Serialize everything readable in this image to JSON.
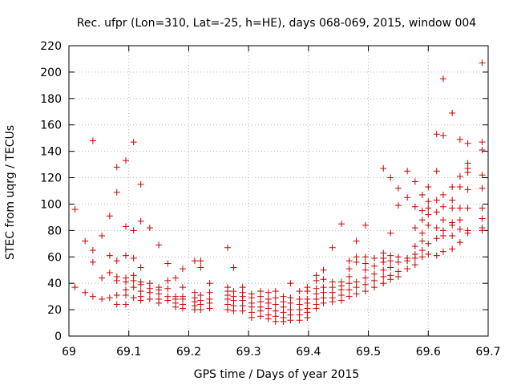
{
  "chart_data": {
    "type": "scatter",
    "title": "Rec. ufpr (Lon=310, Lat=-25, h=HE), days 068-069, 2015, window 004",
    "xlabel": "GPS time / Days of year 2015",
    "ylabel": "STEC from uqrg / TECUs",
    "xlim": [
      69,
      69.7
    ],
    "ylim": [
      0,
      220
    ],
    "xticks": [
      69,
      69.1,
      69.2,
      69.3,
      69.4,
      69.5,
      69.6,
      69.7
    ],
    "xtick_labels": [
      "69",
      "69.1",
      "69.2",
      "69.3",
      "69.4",
      "69.5",
      "69.6",
      "69.7"
    ],
    "yticks": [
      0,
      20,
      40,
      60,
      80,
      100,
      120,
      140,
      160,
      180,
      200,
      220
    ],
    "ytick_labels": [
      "0",
      "20",
      "40",
      "60",
      "80",
      "100",
      "120",
      "140",
      "160",
      "180",
      "200",
      "220"
    ],
    "marker": "+",
    "marker_color": "#cc0000",
    "series": [
      {
        "name": "STEC",
        "points": [
          [
            69.01,
            96
          ],
          [
            69.01,
            37
          ],
          [
            69.027,
            72
          ],
          [
            69.027,
            33
          ],
          [
            69.04,
            148
          ],
          [
            69.04,
            65
          ],
          [
            69.04,
            56
          ],
          [
            69.04,
            30
          ],
          [
            69.055,
            76
          ],
          [
            69.055,
            44
          ],
          [
            69.055,
            28
          ],
          [
            69.068,
            91
          ],
          [
            69.068,
            61
          ],
          [
            69.068,
            48
          ],
          [
            69.068,
            29
          ],
          [
            69.08,
            128
          ],
          [
            69.08,
            109
          ],
          [
            69.08,
            57
          ],
          [
            69.08,
            45
          ],
          [
            69.08,
            42
          ],
          [
            69.08,
            31
          ],
          [
            69.08,
            24
          ],
          [
            69.095,
            133
          ],
          [
            69.095,
            83
          ],
          [
            69.095,
            61
          ],
          [
            69.095,
            44
          ],
          [
            69.095,
            41
          ],
          [
            69.095,
            35
          ],
          [
            69.095,
            31
          ],
          [
            69.095,
            24
          ],
          [
            69.108,
            147
          ],
          [
            69.108,
            80
          ],
          [
            69.108,
            59
          ],
          [
            69.108,
            46
          ],
          [
            69.108,
            42
          ],
          [
            69.108,
            37
          ],
          [
            69.108,
            29
          ],
          [
            69.12,
            115
          ],
          [
            69.12,
            87
          ],
          [
            69.12,
            52
          ],
          [
            69.12,
            41
          ],
          [
            69.12,
            39
          ],
          [
            69.12,
            34
          ],
          [
            69.12,
            30
          ],
          [
            69.12,
            27
          ],
          [
            69.135,
            82
          ],
          [
            69.135,
            40
          ],
          [
            69.135,
            36
          ],
          [
            69.135,
            33
          ],
          [
            69.135,
            28
          ],
          [
            69.15,
            69
          ],
          [
            69.15,
            37
          ],
          [
            69.15,
            35
          ],
          [
            69.15,
            32
          ],
          [
            69.15,
            28
          ],
          [
            69.15,
            25
          ],
          [
            69.165,
            55
          ],
          [
            69.165,
            42
          ],
          [
            69.165,
            36
          ],
          [
            69.165,
            30
          ],
          [
            69.165,
            27
          ],
          [
            69.178,
            44
          ],
          [
            69.178,
            30
          ],
          [
            69.178,
            28
          ],
          [
            69.178,
            25
          ],
          [
            69.178,
            22
          ],
          [
            69.19,
            51
          ],
          [
            69.19,
            37
          ],
          [
            69.19,
            30
          ],
          [
            69.19,
            28
          ],
          [
            69.19,
            24
          ],
          [
            69.19,
            21
          ],
          [
            69.21,
            57
          ],
          [
            69.21,
            33
          ],
          [
            69.21,
            29
          ],
          [
            69.21,
            26
          ],
          [
            69.21,
            23
          ],
          [
            69.21,
            20
          ],
          [
            69.22,
            57
          ],
          [
            69.22,
            52
          ],
          [
            69.22,
            31
          ],
          [
            69.22,
            27
          ],
          [
            69.22,
            24
          ],
          [
            69.22,
            20
          ],
          [
            69.235,
            40
          ],
          [
            69.235,
            33
          ],
          [
            69.235,
            28
          ],
          [
            69.235,
            25
          ],
          [
            69.235,
            21
          ],
          [
            69.265,
            67
          ],
          [
            69.265,
            37
          ],
          [
            69.265,
            34
          ],
          [
            69.265,
            31
          ],
          [
            69.265,
            28
          ],
          [
            69.265,
            24
          ],
          [
            69.265,
            20
          ],
          [
            69.275,
            52
          ],
          [
            69.275,
            34
          ],
          [
            69.275,
            30
          ],
          [
            69.275,
            27
          ],
          [
            69.275,
            23
          ],
          [
            69.275,
            19
          ],
          [
            69.29,
            37
          ],
          [
            69.29,
            33
          ],
          [
            69.29,
            30
          ],
          [
            69.29,
            27
          ],
          [
            69.29,
            23
          ],
          [
            69.29,
            19
          ],
          [
            69.305,
            32
          ],
          [
            69.305,
            29
          ],
          [
            69.305,
            25
          ],
          [
            69.305,
            22
          ],
          [
            69.305,
            18
          ],
          [
            69.305,
            14
          ],
          [
            69.32,
            34
          ],
          [
            69.32,
            30
          ],
          [
            69.32,
            26
          ],
          [
            69.32,
            22
          ],
          [
            69.32,
            19
          ],
          [
            69.32,
            15
          ],
          [
            69.333,
            33
          ],
          [
            69.333,
            28
          ],
          [
            69.333,
            25
          ],
          [
            69.333,
            21
          ],
          [
            69.333,
            16
          ],
          [
            69.333,
            13
          ],
          [
            69.345,
            34
          ],
          [
            69.345,
            29
          ],
          [
            69.345,
            24
          ],
          [
            69.345,
            19
          ],
          [
            69.345,
            15
          ],
          [
            69.345,
            11
          ],
          [
            69.358,
            30
          ],
          [
            69.358,
            26
          ],
          [
            69.358,
            22
          ],
          [
            69.358,
            18
          ],
          [
            69.358,
            14
          ],
          [
            69.358,
            11
          ],
          [
            69.37,
            40
          ],
          [
            69.37,
            29
          ],
          [
            69.37,
            25
          ],
          [
            69.37,
            20
          ],
          [
            69.37,
            16
          ],
          [
            69.37,
            12
          ],
          [
            69.385,
            34
          ],
          [
            69.385,
            28
          ],
          [
            69.385,
            24
          ],
          [
            69.385,
            20
          ],
          [
            69.385,
            16
          ],
          [
            69.385,
            12
          ],
          [
            69.398,
            37
          ],
          [
            69.398,
            34
          ],
          [
            69.398,
            28
          ],
          [
            69.398,
            25
          ],
          [
            69.398,
            21
          ],
          [
            69.398,
            18
          ],
          [
            69.398,
            14
          ],
          [
            69.413,
            46
          ],
          [
            69.413,
            42
          ],
          [
            69.413,
            36
          ],
          [
            69.413,
            32
          ],
          [
            69.413,
            28
          ],
          [
            69.413,
            24
          ],
          [
            69.413,
            21
          ],
          [
            69.425,
            50
          ],
          [
            69.425,
            43
          ],
          [
            69.425,
            37
          ],
          [
            69.425,
            33
          ],
          [
            69.425,
            29
          ],
          [
            69.425,
            25
          ],
          [
            69.44,
            67
          ],
          [
            69.44,
            41
          ],
          [
            69.44,
            37
          ],
          [
            69.44,
            33
          ],
          [
            69.44,
            29
          ],
          [
            69.44,
            26
          ],
          [
            69.455,
            85
          ],
          [
            69.455,
            41
          ],
          [
            69.455,
            38
          ],
          [
            69.455,
            35
          ],
          [
            69.455,
            31
          ],
          [
            69.455,
            27
          ],
          [
            69.468,
            57
          ],
          [
            69.468,
            51
          ],
          [
            69.468,
            45
          ],
          [
            69.468,
            40
          ],
          [
            69.468,
            35
          ],
          [
            69.468,
            30
          ],
          [
            69.48,
            72
          ],
          [
            69.48,
            60
          ],
          [
            69.48,
            56
          ],
          [
            69.48,
            41
          ],
          [
            69.48,
            37
          ],
          [
            69.48,
            32
          ],
          [
            69.495,
            84
          ],
          [
            69.495,
            60
          ],
          [
            69.495,
            55
          ],
          [
            69.495,
            50
          ],
          [
            69.495,
            44
          ],
          [
            69.495,
            39
          ],
          [
            69.495,
            34
          ],
          [
            69.51,
            59
          ],
          [
            69.51,
            53
          ],
          [
            69.51,
            47
          ],
          [
            69.51,
            42
          ],
          [
            69.51,
            37
          ],
          [
            69.525,
            127
          ],
          [
            69.525,
            63
          ],
          [
            69.525,
            59
          ],
          [
            69.525,
            56
          ],
          [
            69.525,
            50
          ],
          [
            69.525,
            45
          ],
          [
            69.525,
            40
          ],
          [
            69.537,
            120
          ],
          [
            69.537,
            78
          ],
          [
            69.537,
            61
          ],
          [
            69.537,
            57
          ],
          [
            69.537,
            52
          ],
          [
            69.537,
            46
          ],
          [
            69.537,
            43
          ],
          [
            69.55,
            112
          ],
          [
            69.55,
            99
          ],
          [
            69.55,
            60
          ],
          [
            69.55,
            56
          ],
          [
            69.55,
            49
          ],
          [
            69.55,
            45
          ],
          [
            69.565,
            125
          ],
          [
            69.565,
            105
          ],
          [
            69.565,
            59
          ],
          [
            69.565,
            57
          ],
          [
            69.565,
            51
          ],
          [
            69.578,
            117
          ],
          [
            69.578,
            98
          ],
          [
            69.578,
            82
          ],
          [
            69.578,
            68
          ],
          [
            69.578,
            62
          ],
          [
            69.578,
            59
          ],
          [
            69.578,
            54
          ],
          [
            69.59,
            107
          ],
          [
            69.59,
            95
          ],
          [
            69.59,
            88
          ],
          [
            69.59,
            78
          ],
          [
            69.59,
            72
          ],
          [
            69.59,
            65
          ],
          [
            69.59,
            60
          ],
          [
            69.6,
            113
          ],
          [
            69.6,
            102
          ],
          [
            69.6,
            97
          ],
          [
            69.6,
            92
          ],
          [
            69.6,
            84
          ],
          [
            69.6,
            70
          ],
          [
            69.6,
            62
          ],
          [
            69.614,
            153
          ],
          [
            69.614,
            125
          ],
          [
            69.614,
            103
          ],
          [
            69.614,
            94
          ],
          [
            69.614,
            82
          ],
          [
            69.614,
            74
          ],
          [
            69.614,
            61
          ],
          [
            69.625,
            195
          ],
          [
            69.625,
            152
          ],
          [
            69.625,
            107
          ],
          [
            69.625,
            98
          ],
          [
            69.625,
            88
          ],
          [
            69.625,
            80
          ],
          [
            69.625,
            76
          ],
          [
            69.625,
            64
          ],
          [
            69.64,
            169
          ],
          [
            69.64,
            113
          ],
          [
            69.64,
            103
          ],
          [
            69.64,
            97
          ],
          [
            69.64,
            86
          ],
          [
            69.64,
            84
          ],
          [
            69.64,
            76
          ],
          [
            69.64,
            66
          ],
          [
            69.653,
            149
          ],
          [
            69.653,
            121
          ],
          [
            69.653,
            113
          ],
          [
            69.653,
            97
          ],
          [
            69.653,
            88
          ],
          [
            69.653,
            81
          ],
          [
            69.653,
            71
          ],
          [
            69.666,
            146
          ],
          [
            69.666,
            131
          ],
          [
            69.666,
            127
          ],
          [
            69.666,
            124
          ],
          [
            69.666,
            111
          ],
          [
            69.666,
            97
          ],
          [
            69.666,
            80
          ],
          [
            69.666,
            78
          ],
          [
            69.69,
            207
          ],
          [
            69.69,
            147
          ],
          [
            69.69,
            141
          ],
          [
            69.69,
            122
          ],
          [
            69.69,
            112
          ],
          [
            69.69,
            97
          ],
          [
            69.69,
            89
          ],
          [
            69.69,
            82
          ],
          [
            69.69,
            80
          ]
        ]
      }
    ]
  }
}
